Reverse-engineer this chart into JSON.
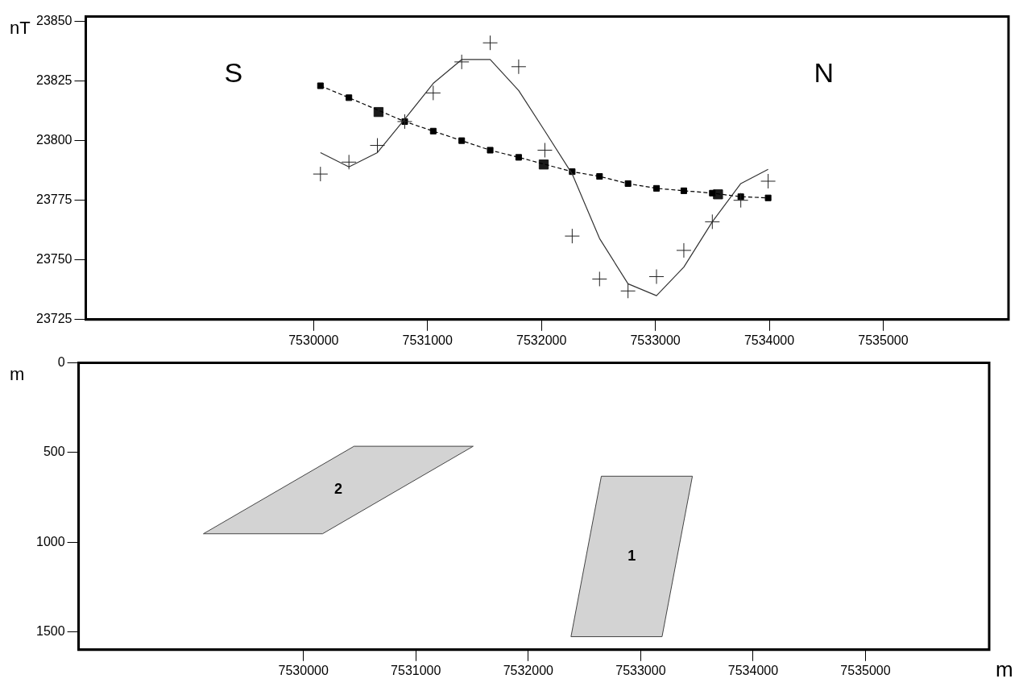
{
  "chart_data": [
    {
      "type": "line",
      "ylabel": "nT",
      "annotations": [
        "S",
        "N"
      ],
      "xlim": [
        7528000,
        7536100
      ],
      "xticks": [
        7530000,
        7531000,
        7532000,
        7533000,
        7534000,
        7535000
      ],
      "ylim": [
        23725,
        23852
      ],
      "yticks": [
        23725,
        23750,
        23775,
        23800,
        23825,
        23850
      ],
      "grid": false,
      "legend": false,
      "series": [
        {
          "type": "scatter",
          "marker": "cross",
          "color": "#222222",
          "x": [
            7530060,
            7530310,
            7530560,
            7530800,
            7531050,
            7531300,
            7531550,
            7531800,
            7532030,
            7532270,
            7532510,
            7532760,
            7533010,
            7533250,
            7533500,
            7533750,
            7533990
          ],
          "values": [
            23786,
            23791,
            23798,
            23808,
            23820,
            23833,
            23841,
            23831,
            23796,
            23760,
            23742,
            23737,
            23743,
            23754,
            23766,
            23775,
            23783
          ]
        },
        {
          "marker": "none",
          "line_style": "solid",
          "color": "#333333",
          "x": [
            7530060,
            7530310,
            7530560,
            7530800,
            7531050,
            7531300,
            7531550,
            7531800,
            7532030,
            7532270,
            7532510,
            7532760,
            7533010,
            7533250,
            7533500,
            7533750,
            7533990
          ],
          "values": [
            23795,
            23789,
            23795,
            23809,
            23824,
            23834,
            23834,
            23821,
            23804,
            23786,
            23759,
            23740,
            23735,
            23747,
            23766,
            23782,
            23788
          ]
        },
        {
          "marker": "square",
          "line_style": "dashed",
          "color": "#000000",
          "x": [
            7530060,
            7530310,
            7530800,
            7531050,
            7531300,
            7531550,
            7531800,
            7532270,
            7532510,
            7532760,
            7533010,
            7533250,
            7533500,
            7533750,
            7533990
          ],
          "values": [
            23823,
            23818,
            23808,
            23804,
            23800,
            23796,
            23793,
            23787,
            23785,
            23782,
            23780,
            23779,
            23778,
            23776.5,
            23776
          ]
        },
        {
          "type": "scatter",
          "marker": "square",
          "color": "#1a1a1a",
          "x": [
            7530570,
            7532020,
            7533550
          ],
          "values": [
            23812,
            23790,
            23777.5
          ]
        }
      ]
    },
    {
      "type": "area",
      "ylabel": "m",
      "xlabel": "m",
      "annotations": [
        "2",
        "1"
      ],
      "xlim": [
        7528000,
        7536100
      ],
      "xticks": [
        7530000,
        7531000,
        7532000,
        7533000,
        7534000,
        7535000
      ],
      "ylim": [
        1600,
        0
      ],
      "yticks": [
        0,
        500,
        1000,
        1500
      ],
      "grid": false,
      "legend": false,
      "series": [
        {
          "color": "#d3d3d3",
          "x": [
            7529110,
            7530170,
            7531510,
            7530450,
            7529110
          ],
          "values": [
            953,
            953,
            465,
            465,
            953
          ]
        },
        {
          "color": "#d3d3d3",
          "x": [
            7532650,
            7533460,
            7533190,
            7532380,
            7532650
          ],
          "values": [
            632,
            632,
            1527,
            1527,
            632
          ]
        }
      ]
    }
  ]
}
